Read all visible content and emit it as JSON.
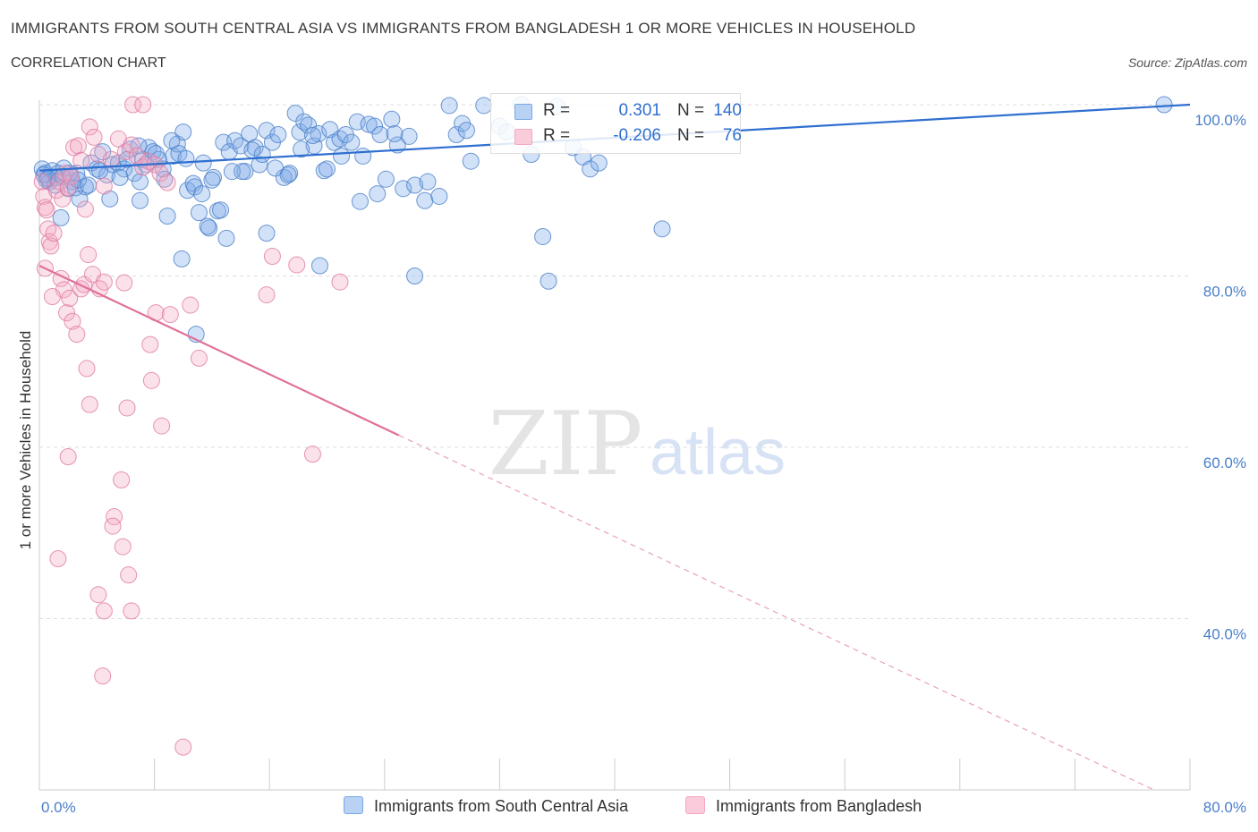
{
  "header": {
    "title": "IMMIGRANTS FROM SOUTH CENTRAL ASIA VS IMMIGRANTS FROM BANGLADESH 1 OR MORE VEHICLES IN HOUSEHOLD",
    "subtitle": "CORRELATION CHART",
    "source": "Source: ZipAtlas.com"
  },
  "legend": {
    "r_label": "R =",
    "n_label": "N =",
    "series": [
      {
        "r": "0.301",
        "n": "140"
      },
      {
        "r": "-0.206",
        "n": "76"
      }
    ]
  },
  "watermark": {
    "zip": "ZIP",
    "atlas": "atlas"
  },
  "chart_data": {
    "type": "scatter",
    "title": "IMMIGRANTS FROM SOUTH CENTRAL ASIA VS IMMIGRANTS FROM BANGLADESH 1 OR MORE VEHICLES IN HOUSEHOLD",
    "subtitle": "CORRELATION CHART",
    "xlabel": "",
    "ylabel": "1 or more Vehicles in Household",
    "xlim": [
      0,
      80
    ],
    "ylim": [
      20,
      100
    ],
    "x_tick_labels": [
      "0.0%",
      "80.0%"
    ],
    "y_ticks": [
      40,
      60,
      80,
      100
    ],
    "y_tick_labels": [
      "40.0%",
      "60.0%",
      "80.0%",
      "100.0%"
    ],
    "grid": "horizontal dashed",
    "legend_position": "top-center and bottom",
    "series": [
      {
        "name": "Immigrants from South Central Asia",
        "color": "#7aaae8",
        "stroke": "#4a7fc8",
        "r": 0.301,
        "n": 140,
        "trend": {
          "x": [
            0,
            80
          ],
          "y": [
            92.3,
            100
          ]
        },
        "points": [
          [
            0.2,
            92.5
          ],
          [
            0.4,
            92
          ],
          [
            0.5,
            91.2
          ],
          [
            0.7,
            91
          ],
          [
            0.9,
            92.3
          ],
          [
            1.1,
            90.6
          ],
          [
            1.3,
            92
          ],
          [
            1.5,
            86.8
          ],
          [
            1.7,
            92.6
          ],
          [
            2,
            90.2
          ],
          [
            2.3,
            91
          ],
          [
            2.5,
            90.3
          ],
          [
            2.8,
            89
          ],
          [
            3.2,
            90.4
          ],
          [
            3.6,
            93.2
          ],
          [
            4,
            92.5
          ],
          [
            4.4,
            94.5
          ],
          [
            4.7,
            91.8
          ],
          [
            5.1,
            93
          ],
          [
            5.5,
            93.2
          ],
          [
            5.9,
            92.5
          ],
          [
            6.3,
            94.8
          ],
          [
            6.6,
            92
          ],
          [
            7,
            91
          ],
          [
            7.2,
            93.6
          ],
          [
            7.6,
            95
          ],
          [
            7.9,
            94.5
          ],
          [
            8.3,
            93.6
          ],
          [
            8.6,
            92.5
          ],
          [
            8.9,
            87
          ],
          [
            9.3,
            94
          ],
          [
            9.6,
            95.4
          ],
          [
            10,
            96.8
          ],
          [
            10.3,
            90
          ],
          [
            10.7,
            90.8
          ],
          [
            11.1,
            87.4
          ],
          [
            11.4,
            93.2
          ],
          [
            11.8,
            85.6
          ],
          [
            12.1,
            91.5
          ],
          [
            12.4,
            87.6
          ],
          [
            12.8,
            95.6
          ],
          [
            13.2,
            94.5
          ],
          [
            13.6,
            95.8
          ],
          [
            14,
            95.2
          ],
          [
            14.3,
            92.2
          ],
          [
            14.6,
            96.6
          ],
          [
            15,
            95
          ],
          [
            15.3,
            93
          ],
          [
            15.8,
            97
          ],
          [
            16.2,
            95.6
          ],
          [
            16.6,
            96.5
          ],
          [
            17,
            91.5
          ],
          [
            17.4,
            92
          ],
          [
            17.8,
            99
          ],
          [
            18.1,
            96.8
          ],
          [
            18.4,
            98
          ],
          [
            18.7,
            97.6
          ],
          [
            19.1,
            95.2
          ],
          [
            19.4,
            96.6
          ],
          [
            19.8,
            92.3
          ],
          [
            20.2,
            97.1
          ],
          [
            20.5,
            95.6
          ],
          [
            20.9,
            96
          ],
          [
            21.3,
            96.5
          ],
          [
            21.7,
            95.6
          ],
          [
            22.1,
            98
          ],
          [
            22.5,
            94
          ],
          [
            22.9,
            97.7
          ],
          [
            23.3,
            97.5
          ],
          [
            23.7,
            96.5
          ],
          [
            24.1,
            91.3
          ],
          [
            24.5,
            98.3
          ],
          [
            24.9,
            95.3
          ],
          [
            25.3,
            90.2
          ],
          [
            26.1,
            90.6
          ],
          [
            26.8,
            88.8
          ],
          [
            28.5,
            99.9
          ],
          [
            29,
            96.5
          ],
          [
            29.4,
            97.8
          ],
          [
            30,
            93.4
          ],
          [
            30.9,
            99.9
          ],
          [
            32,
            97.5
          ],
          [
            32.5,
            96.8
          ],
          [
            33.5,
            100
          ],
          [
            34.2,
            94.2
          ],
          [
            35,
            84.6
          ],
          [
            35.4,
            79.4
          ],
          [
            36,
            99.8
          ],
          [
            37.1,
            95
          ],
          [
            37.8,
            93.9
          ],
          [
            38.3,
            92.5
          ],
          [
            38.9,
            93.2
          ],
          [
            43.3,
            85.5
          ],
          [
            78.2,
            100
          ],
          [
            9.9,
            82
          ],
          [
            10.9,
            73.2
          ],
          [
            15.8,
            85
          ],
          [
            13,
            84.4
          ],
          [
            11.7,
            85.8
          ],
          [
            19.5,
            81.2
          ],
          [
            26.1,
            80
          ],
          [
            7,
            88.8
          ],
          [
            2.6,
            92
          ],
          [
            1.2,
            91.5
          ],
          [
            0.3,
            91.8
          ],
          [
            0.6,
            91.4
          ],
          [
            1.6,
            91.6
          ],
          [
            2.1,
            92
          ],
          [
            2.7,
            91.2
          ],
          [
            3.4,
            90.6
          ],
          [
            4.2,
            92.3
          ],
          [
            4.9,
            89
          ],
          [
            5.6,
            91.5
          ],
          [
            6.1,
            93.6
          ],
          [
            6.9,
            95.2
          ],
          [
            7.4,
            93
          ],
          [
            8.1,
            94.3
          ],
          [
            8.7,
            91.3
          ],
          [
            9.2,
            95.8
          ],
          [
            9.7,
            94.3
          ],
          [
            10.2,
            93.7
          ],
          [
            10.8,
            90.4
          ],
          [
            11.3,
            89.6
          ],
          [
            12,
            91.2
          ],
          [
            12.6,
            87.7
          ],
          [
            13.4,
            92.2
          ],
          [
            14.1,
            92.2
          ],
          [
            14.8,
            94.7
          ],
          [
            15.5,
            94.2
          ],
          [
            16.4,
            92.6
          ],
          [
            17.3,
            91.8
          ],
          [
            18.2,
            94.8
          ],
          [
            19,
            96.4
          ],
          [
            20,
            92.5
          ],
          [
            21,
            94
          ],
          [
            22.3,
            88.7
          ],
          [
            23.5,
            89.6
          ],
          [
            24.7,
            96.6
          ],
          [
            25.7,
            96.3
          ],
          [
            27,
            91
          ],
          [
            27.8,
            89.3
          ],
          [
            29.7,
            97
          ]
        ]
      },
      {
        "name": "Immigrants from Bangladesh",
        "color": "#f4a8c2",
        "stroke": "#e07aa0",
        "r": -0.206,
        "n": 76,
        "trend": {
          "x": [
            0,
            25
          ],
          "y": [
            81.2,
            61.4
          ]
        },
        "trend_dashed": {
          "x": [
            25,
            77.5
          ],
          "y": [
            61.4,
            20
          ]
        },
        "points": [
          [
            0.2,
            91
          ],
          [
            0.3,
            89.3
          ],
          [
            0.4,
            88
          ],
          [
            0.5,
            87.7
          ],
          [
            0.6,
            85.5
          ],
          [
            0.7,
            84
          ],
          [
            0.8,
            83.5
          ],
          [
            1,
            85
          ],
          [
            1.2,
            90
          ],
          [
            1.4,
            91
          ],
          [
            1.6,
            89
          ],
          [
            1.8,
            92
          ],
          [
            2,
            90.3
          ],
          [
            2.2,
            91.6
          ],
          [
            2.4,
            95
          ],
          [
            2.7,
            95.2
          ],
          [
            2.9,
            93.5
          ],
          [
            3.2,
            87.8
          ],
          [
            3.5,
            97.4
          ],
          [
            3.8,
            96.2
          ],
          [
            4.1,
            94.2
          ],
          [
            4.5,
            90.5
          ],
          [
            5,
            93.6
          ],
          [
            5.5,
            96
          ],
          [
            6,
            94.5
          ],
          [
            6.4,
            95.3
          ],
          [
            6.8,
            94
          ],
          [
            7.2,
            92.7
          ],
          [
            7.6,
            93.4
          ],
          [
            8,
            93
          ],
          [
            8.4,
            92
          ],
          [
            8.9,
            90.9
          ],
          [
            6.5,
            100
          ],
          [
            7.2,
            100
          ],
          [
            1.5,
            79.7
          ],
          [
            1.7,
            78.4
          ],
          [
            1.9,
            75.7
          ],
          [
            2.1,
            77.4
          ],
          [
            2.3,
            74.7
          ],
          [
            2.6,
            73.2
          ],
          [
            2.9,
            78.5
          ],
          [
            3.1,
            79
          ],
          [
            3.4,
            82.5
          ],
          [
            3.7,
            80.2
          ],
          [
            4.2,
            78.5
          ],
          [
            4.5,
            79.3
          ],
          [
            5.9,
            79.2
          ],
          [
            7.7,
            72
          ],
          [
            7.8,
            67.8
          ],
          [
            8.1,
            75.7
          ],
          [
            8.5,
            62.5
          ],
          [
            9.1,
            75.5
          ],
          [
            10.5,
            76.6
          ],
          [
            11.1,
            70.4
          ],
          [
            15.8,
            77.8
          ],
          [
            16.2,
            82.3
          ],
          [
            17.9,
            81.3
          ],
          [
            19,
            59.2
          ],
          [
            20.9,
            79.3
          ],
          [
            3.3,
            69.2
          ],
          [
            3.5,
            65
          ],
          [
            6.1,
            64.6
          ],
          [
            2,
            58.9
          ],
          [
            5.7,
            56.2
          ],
          [
            5.2,
            51.9
          ],
          [
            5.1,
            50.8
          ],
          [
            5.8,
            48.4
          ],
          [
            6.2,
            45.1
          ],
          [
            1.3,
            47
          ],
          [
            4.1,
            42.8
          ],
          [
            4.5,
            40.9
          ],
          [
            6.4,
            40.9
          ],
          [
            4.4,
            33.3
          ],
          [
            10,
            25
          ],
          [
            0.9,
            77.6
          ],
          [
            0.4,
            80.9
          ]
        ]
      }
    ]
  }
}
